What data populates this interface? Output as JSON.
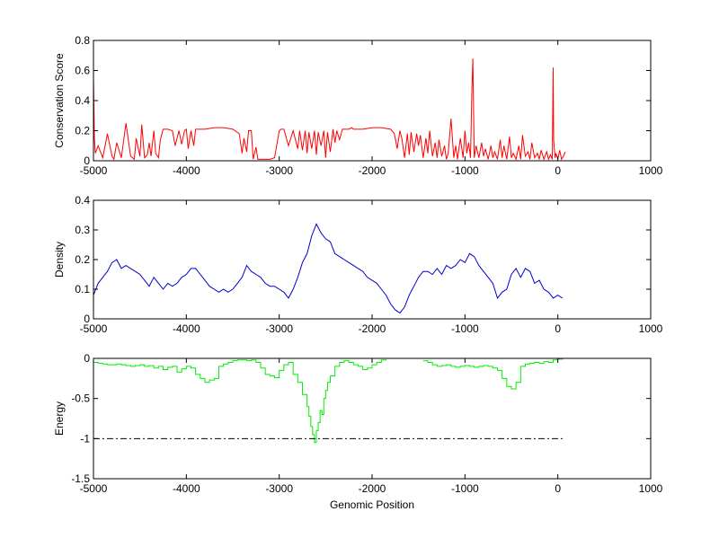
{
  "chart_data": [
    {
      "type": "line",
      "ylabel": "Conservation Score",
      "xlabel": "",
      "xlim": [
        -5000,
        1000
      ],
      "ylim": [
        0,
        0.8
      ],
      "xticks": [
        -5000,
        -4000,
        -3000,
        -2000,
        -1000,
        0,
        1000
      ],
      "yticks": [
        0,
        0.2,
        0.4,
        0.6,
        0.8
      ],
      "ytick_labels": [
        "0",
        "0.2",
        "0.4",
        "0.6",
        "0.8"
      ],
      "grid": false,
      "series": [
        {
          "color": "#ff0000",
          "x": [
            -5000,
            -4990,
            -4980,
            -4950,
            -4900,
            -4850,
            -4800,
            -4780,
            -4750,
            -4700,
            -4650,
            -4600,
            -4560,
            -4540,
            -4500,
            -4480,
            -4450,
            -4420,
            -4400,
            -4380,
            -4350,
            -4330,
            -4300,
            -4280,
            -4250,
            -4200,
            -4150,
            -4120,
            -4080,
            -4050,
            -4020,
            -4000,
            -3980,
            -3950,
            -3920,
            -3900,
            -3870,
            -3850,
            -3800,
            -3700,
            -3600,
            -3500,
            -3430,
            -3400,
            -3380,
            -3350,
            -3330,
            -3300,
            -3280,
            -3250,
            -3230,
            -3200,
            -3180,
            -3150,
            -3100,
            -3050,
            -3000,
            -2980,
            -2950,
            -2900,
            -2850,
            -2800,
            -2780,
            -2750,
            -2720,
            -2700,
            -2680,
            -2650,
            -2620,
            -2600,
            -2580,
            -2550,
            -2520,
            -2500,
            -2480,
            -2450,
            -2420,
            -2400,
            -2380,
            -2350,
            -2320,
            -2300,
            -2280,
            -2250,
            -2220,
            -2200,
            -2150,
            -2100,
            -2000,
            -1900,
            -1800,
            -1760,
            -1730,
            -1700,
            -1680,
            -1650,
            -1620,
            -1600,
            -1580,
            -1550,
            -1520,
            -1500,
            -1480,
            -1450,
            -1420,
            -1400,
            -1380,
            -1350,
            -1320,
            -1300,
            -1280,
            -1250,
            -1220,
            -1200,
            -1180,
            -1150,
            -1120,
            -1100,
            -1080,
            -1050,
            -1020,
            -1000,
            -980,
            -960,
            -940,
            -925,
            -915,
            -900,
            -880,
            -850,
            -820,
            -800,
            -780,
            -750,
            -720,
            -700,
            -680,
            -650,
            -620,
            -600,
            -580,
            -550,
            -520,
            -500,
            -480,
            -450,
            -420,
            -400,
            -380,
            -350,
            -320,
            -300,
            -280,
            -250,
            -220,
            -200,
            -180,
            -150,
            -120,
            -100,
            -80,
            -60,
            -50,
            -45,
            -40,
            -30,
            -20,
            0,
            20,
            40,
            60,
            80
          ],
          "y": [
            0.56,
            0.15,
            0.05,
            0.1,
            0.02,
            0.18,
            0.03,
            0.01,
            0.12,
            0.02,
            0.25,
            0.03,
            0.01,
            0.15,
            0.03,
            0.24,
            0.02,
            0.04,
            0.12,
            0.03,
            0.2,
            0.05,
            0.02,
            0.14,
            0.21,
            0.21,
            0.2,
            0.1,
            0.2,
            0.11,
            0.2,
            0.21,
            0.08,
            0.2,
            0.1,
            0.21,
            0.21,
            0.21,
            0.21,
            0.22,
            0.22,
            0.21,
            0.18,
            0.05,
            0.15,
            0.06,
            0.2,
            0.2,
            0.01,
            0.09,
            0.01,
            0.01,
            0.01,
            0.01,
            0.01,
            0.02,
            0.2,
            0.21,
            0.21,
            0.1,
            0.2,
            0.08,
            0.2,
            0.07,
            0.2,
            0.05,
            0.19,
            0.08,
            0.2,
            0.04,
            0.19,
            0.1,
            0.2,
            0.02,
            0.19,
            0.06,
            0.21,
            0.12,
            0.2,
            0.14,
            0.21,
            0.21,
            0.21,
            0.21,
            0.22,
            0.21,
            0.21,
            0.21,
            0.22,
            0.22,
            0.21,
            0.18,
            0.08,
            0.2,
            0.15,
            0.02,
            0.18,
            0.04,
            0.19,
            0.06,
            0.18,
            0.1,
            0.17,
            0.02,
            0.15,
            0.05,
            0.2,
            0.03,
            0.12,
            0.02,
            0.14,
            0.03,
            0.1,
            0.01,
            0.05,
            0.28,
            0.02,
            0.1,
            0.01,
            0.15,
            0.02,
            0.2,
            0.05,
            0.12,
            0.02,
            0.48,
            0.68,
            0.02,
            0.1,
            0.02,
            0.12,
            0.03,
            0.08,
            0.01,
            0.1,
            0.02,
            0.06,
            0.01,
            0.14,
            0.02,
            0.1,
            0.01,
            0.16,
            0.02,
            0.05,
            0.01,
            0.1,
            0.01,
            0.17,
            0.03,
            0.06,
            0.01,
            0.12,
            0.02,
            0.05,
            0.01,
            0.07,
            0.01,
            0.06,
            0.01,
            0.04,
            0.01,
            0.62,
            0.14,
            0.1,
            0.02,
            0.05,
            0.01,
            0.07,
            0.01,
            0.03,
            0.06
          ]
        }
      ]
    },
    {
      "type": "line",
      "ylabel": "Density",
      "xlabel": "",
      "xlim": [
        -5000,
        1000
      ],
      "ylim": [
        0,
        0.4
      ],
      "xticks": [
        -5000,
        -4000,
        -3000,
        -2000,
        -1000,
        0,
        1000
      ],
      "yticks": [
        0,
        0.1,
        0.2,
        0.3,
        0.4
      ],
      "ytick_labels": [
        "0",
        "0.1",
        "0.2",
        "0.3",
        "0.4"
      ],
      "grid": false,
      "series": [
        {
          "color": "#0000cc",
          "x": [
            -5000,
            -4950,
            -4900,
            -4850,
            -4800,
            -4750,
            -4700,
            -4650,
            -4600,
            -4550,
            -4500,
            -4450,
            -4400,
            -4350,
            -4300,
            -4250,
            -4200,
            -4150,
            -4100,
            -4050,
            -4000,
            -3950,
            -3900,
            -3850,
            -3800,
            -3750,
            -3700,
            -3650,
            -3600,
            -3550,
            -3500,
            -3450,
            -3400,
            -3350,
            -3300,
            -3250,
            -3200,
            -3150,
            -3100,
            -3050,
            -3000,
            -2950,
            -2900,
            -2850,
            -2800,
            -2750,
            -2700,
            -2650,
            -2600,
            -2550,
            -2500,
            -2450,
            -2400,
            -2350,
            -2300,
            -2250,
            -2200,
            -2150,
            -2100,
            -2050,
            -2000,
            -1950,
            -1900,
            -1850,
            -1800,
            -1750,
            -1700,
            -1650,
            -1600,
            -1550,
            -1500,
            -1450,
            -1400,
            -1350,
            -1300,
            -1250,
            -1200,
            -1150,
            -1100,
            -1050,
            -1000,
            -950,
            -900,
            -850,
            -800,
            -750,
            -700,
            -650,
            -600,
            -550,
            -500,
            -450,
            -400,
            -350,
            -300,
            -250,
            -200,
            -150,
            -100,
            -50,
            0,
            50
          ],
          "y": [
            0.08,
            0.12,
            0.14,
            0.16,
            0.19,
            0.2,
            0.17,
            0.18,
            0.17,
            0.16,
            0.15,
            0.13,
            0.11,
            0.14,
            0.12,
            0.1,
            0.12,
            0.11,
            0.12,
            0.14,
            0.15,
            0.17,
            0.17,
            0.15,
            0.13,
            0.11,
            0.1,
            0.09,
            0.1,
            0.09,
            0.1,
            0.12,
            0.14,
            0.18,
            0.16,
            0.15,
            0.14,
            0.12,
            0.11,
            0.11,
            0.1,
            0.09,
            0.07,
            0.1,
            0.14,
            0.19,
            0.22,
            0.28,
            0.32,
            0.29,
            0.27,
            0.26,
            0.22,
            0.21,
            0.2,
            0.19,
            0.18,
            0.17,
            0.16,
            0.14,
            0.13,
            0.12,
            0.1,
            0.08,
            0.05,
            0.03,
            0.02,
            0.04,
            0.08,
            0.11,
            0.14,
            0.16,
            0.16,
            0.15,
            0.17,
            0.15,
            0.18,
            0.17,
            0.18,
            0.2,
            0.19,
            0.22,
            0.21,
            0.18,
            0.16,
            0.14,
            0.12,
            0.07,
            0.09,
            0.1,
            0.15,
            0.17,
            0.14,
            0.17,
            0.16,
            0.12,
            0.13,
            0.1,
            0.09,
            0.07,
            0.08,
            0.07
          ]
        }
      ]
    },
    {
      "type": "line",
      "ylabel": "Energy",
      "xlabel": "Genomic Position",
      "xlim": [
        -5000,
        1000
      ],
      "ylim": [
        -1.5,
        0
      ],
      "xticks": [
        -5000,
        -4000,
        -3000,
        -2000,
        -1000,
        0,
        1000
      ],
      "yticks": [
        -1.5,
        -1,
        -0.5,
        0
      ],
      "ytick_labels": [
        "-1.5",
        "-1",
        "-0.5",
        "0"
      ],
      "grid": false,
      "series": [
        {
          "color": "#00ee00",
          "x": [
            -5000,
            -4950,
            -4900,
            -4850,
            -4800,
            -4750,
            -4700,
            -4650,
            -4600,
            -4550,
            -4500,
            -4450,
            -4400,
            -4350,
            -4300,
            -4250,
            -4200,
            -4150,
            -4100,
            -4050,
            -4000,
            -3950,
            -3900,
            -3850,
            -3800,
            -3750,
            -3700,
            -3650,
            -3600,
            -3550,
            -3500,
            -3450,
            -3400,
            -3350,
            -3300,
            -3250,
            -3200,
            -3150,
            -3100,
            -3050,
            -3000,
            -2950,
            -2900,
            -2850,
            -2800,
            -2750,
            -2700,
            -2680,
            -2660,
            -2640,
            -2620,
            -2600,
            -2580,
            -2560,
            -2540,
            -2520,
            -2500,
            -2480,
            -2450,
            -2400,
            -2350,
            -2300,
            -2250,
            -2200,
            -2150,
            -2100,
            -2050,
            -2000,
            -1950,
            -1900,
            -1850,
            -1800,
            -1750,
            -1700,
            -1650,
            -1600,
            -1550,
            -1500,
            -1450,
            -1400,
            -1350,
            -1300,
            -1250,
            -1200,
            -1150,
            -1100,
            -1050,
            -1000,
            -950,
            -900,
            -850,
            -800,
            -750,
            -700,
            -650,
            -600,
            -550,
            -500,
            -450,
            -400,
            -350,
            -300,
            -250,
            -200,
            -150,
            -100,
            -50,
            0,
            50
          ],
          "y": [
            -0.05,
            -0.06,
            -0.07,
            -0.08,
            -0.08,
            -0.07,
            -0.08,
            -0.09,
            -0.1,
            -0.09,
            -0.08,
            -0.1,
            -0.09,
            -0.12,
            -0.1,
            -0.14,
            -0.11,
            -0.1,
            -0.17,
            -0.13,
            -0.1,
            -0.12,
            -0.2,
            -0.25,
            -0.3,
            -0.27,
            -0.25,
            -0.1,
            -0.07,
            -0.05,
            -0.03,
            -0.02,
            -0.02,
            -0.03,
            -0.02,
            -0.05,
            -0.12,
            -0.2,
            -0.22,
            -0.24,
            -0.15,
            -0.08,
            -0.05,
            -0.2,
            -0.3,
            -0.45,
            -0.6,
            -0.72,
            -0.85,
            -0.95,
            -1.05,
            -0.9,
            -0.8,
            -0.65,
            -0.7,
            -0.5,
            -0.4,
            -0.3,
            -0.22,
            -0.1,
            -0.05,
            -0.03,
            -0.05,
            -0.08,
            -0.1,
            -0.14,
            -0.12,
            -0.08,
            -0.05,
            -0.02,
            -0.01,
            null,
            null,
            null,
            null,
            null,
            null,
            null,
            -0.03,
            -0.05,
            -0.08,
            -0.1,
            -0.09,
            -0.08,
            -0.1,
            -0.11,
            -0.1,
            -0.09,
            -0.1,
            -0.11,
            -0.1,
            -0.09,
            -0.1,
            -0.12,
            -0.15,
            -0.25,
            -0.35,
            -0.38,
            -0.3,
            -0.1,
            -0.07,
            -0.06,
            -0.05,
            -0.06,
            -0.04,
            -0.05,
            -0.02,
            -0.01,
            0
          ]
        }
      ],
      "reference_line": {
        "y": -1,
        "color": "#000000",
        "style": "dash-dot",
        "x_range": [
          -5000,
          50
        ]
      }
    }
  ]
}
